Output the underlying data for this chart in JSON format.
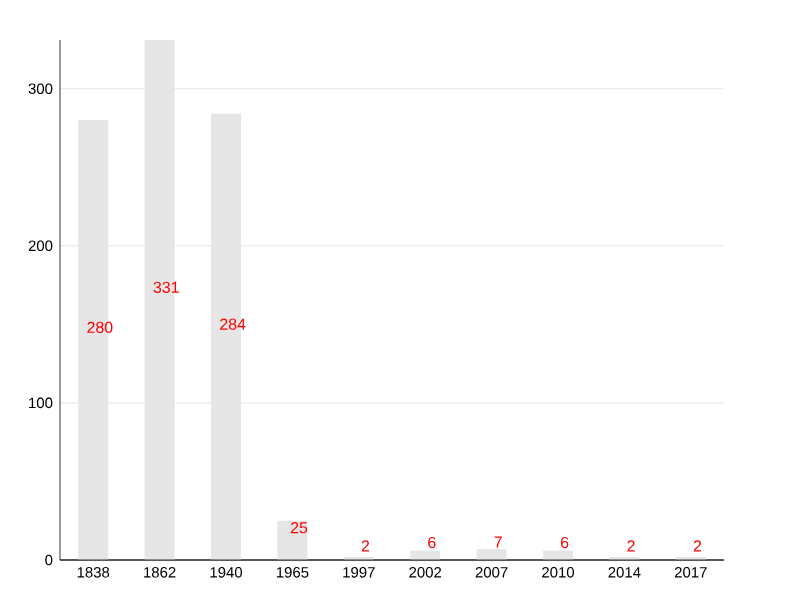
{
  "chart_data": {
    "type": "bar",
    "categories": [
      "1838",
      "1862",
      "1940",
      "1965",
      "1997",
      "2002",
      "2007",
      "2010",
      "2014",
      "2017"
    ],
    "values": [
      280,
      331,
      284,
      25,
      2,
      6,
      7,
      6,
      2,
      2
    ],
    "color": "#e6e6e6",
    "ylim": [
      0,
      331
    ],
    "yticks": [
      0,
      100,
      200,
      300
    ],
    "grid": "y",
    "data_labels": true
  }
}
